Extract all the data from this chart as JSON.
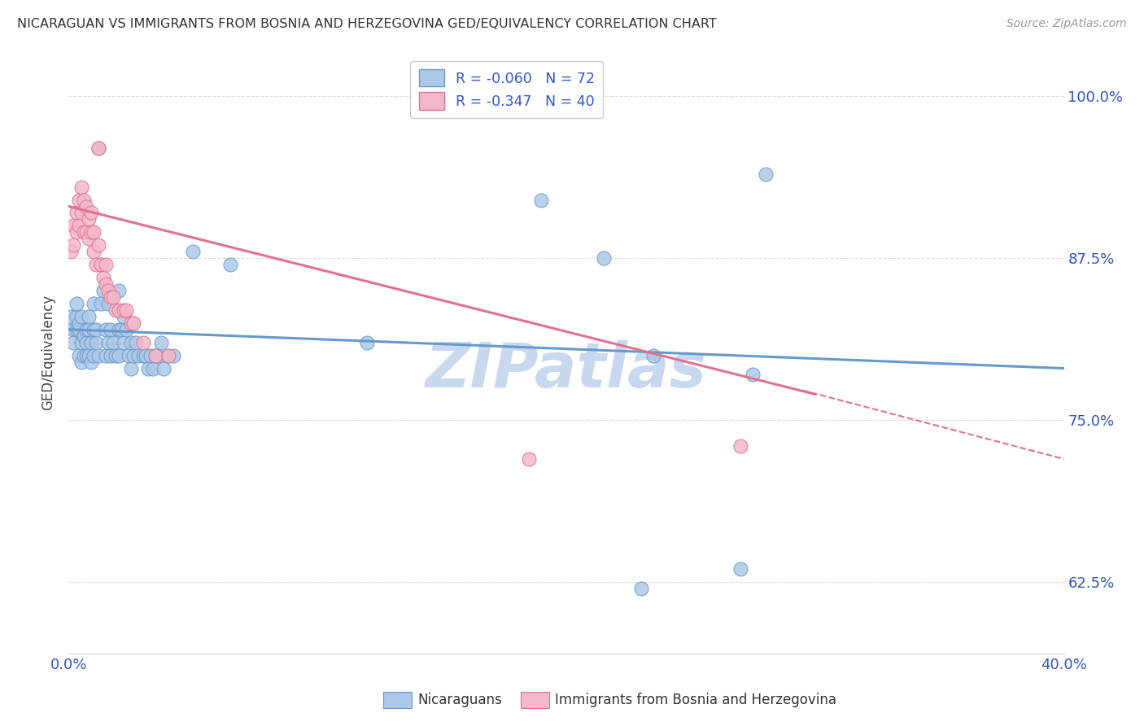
{
  "title": "NICARAGUAN VS IMMIGRANTS FROM BOSNIA AND HERZEGOVINA GED/EQUIVALENCY CORRELATION CHART",
  "source": "Source: ZipAtlas.com",
  "ylabel": "GED/Equivalency",
  "xmin": 0.0,
  "xmax": 0.4,
  "ymin": 0.57,
  "ymax": 1.035,
  "blue_color": "#6699cc",
  "pink_color": "#e07090",
  "blue_fill": "#adc8e8",
  "pink_fill": "#f4b8c8",
  "watermark": "ZIPatlas",
  "watermark_color": "#c8d8ee",
  "background_color": "#ffffff",
  "grid_color": "#dddddd",
  "blue_scatter": [
    [
      0.001,
      0.83
    ],
    [
      0.002,
      0.82
    ],
    [
      0.002,
      0.81
    ],
    [
      0.003,
      0.83
    ],
    [
      0.003,
      0.82
    ],
    [
      0.003,
      0.84
    ],
    [
      0.004,
      0.82
    ],
    [
      0.004,
      0.8
    ],
    [
      0.004,
      0.825
    ],
    [
      0.005,
      0.81
    ],
    [
      0.005,
      0.83
    ],
    [
      0.005,
      0.795
    ],
    [
      0.006,
      0.815
    ],
    [
      0.006,
      0.8
    ],
    [
      0.007,
      0.82
    ],
    [
      0.007,
      0.8
    ],
    [
      0.007,
      0.81
    ],
    [
      0.008,
      0.8
    ],
    [
      0.008,
      0.83
    ],
    [
      0.008,
      0.82
    ],
    [
      0.009,
      0.81
    ],
    [
      0.009,
      0.795
    ],
    [
      0.01,
      0.84
    ],
    [
      0.01,
      0.82
    ],
    [
      0.01,
      0.8
    ],
    [
      0.011,
      0.81
    ],
    [
      0.011,
      0.82
    ],
    [
      0.012,
      0.8
    ],
    [
      0.012,
      0.96
    ],
    [
      0.013,
      0.87
    ],
    [
      0.013,
      0.84
    ],
    [
      0.014,
      0.85
    ],
    [
      0.015,
      0.82
    ],
    [
      0.015,
      0.8
    ],
    [
      0.016,
      0.84
    ],
    [
      0.016,
      0.81
    ],
    [
      0.017,
      0.82
    ],
    [
      0.017,
      0.8
    ],
    [
      0.018,
      0.81
    ],
    [
      0.019,
      0.8
    ],
    [
      0.02,
      0.85
    ],
    [
      0.02,
      0.82
    ],
    [
      0.02,
      0.8
    ],
    [
      0.021,
      0.82
    ],
    [
      0.022,
      0.83
    ],
    [
      0.022,
      0.81
    ],
    [
      0.023,
      0.82
    ],
    [
      0.024,
      0.8
    ],
    [
      0.025,
      0.81
    ],
    [
      0.025,
      0.79
    ],
    [
      0.026,
      0.8
    ],
    [
      0.027,
      0.81
    ],
    [
      0.028,
      0.8
    ],
    [
      0.03,
      0.8
    ],
    [
      0.031,
      0.8
    ],
    [
      0.032,
      0.79
    ],
    [
      0.033,
      0.8
    ],
    [
      0.034,
      0.79
    ],
    [
      0.035,
      0.8
    ],
    [
      0.036,
      0.8
    ],
    [
      0.037,
      0.81
    ],
    [
      0.038,
      0.79
    ],
    [
      0.04,
      0.8
    ],
    [
      0.042,
      0.8
    ],
    [
      0.05,
      0.88
    ],
    [
      0.065,
      0.87
    ],
    [
      0.12,
      0.81
    ],
    [
      0.19,
      0.92
    ],
    [
      0.215,
      0.875
    ],
    [
      0.23,
      0.62
    ],
    [
      0.235,
      0.8
    ],
    [
      0.27,
      0.635
    ],
    [
      0.275,
      0.785
    ],
    [
      0.28,
      0.94
    ]
  ],
  "pink_scatter": [
    [
      0.001,
      0.88
    ],
    [
      0.002,
      0.9
    ],
    [
      0.002,
      0.885
    ],
    [
      0.003,
      0.91
    ],
    [
      0.003,
      0.895
    ],
    [
      0.004,
      0.92
    ],
    [
      0.004,
      0.9
    ],
    [
      0.005,
      0.93
    ],
    [
      0.005,
      0.91
    ],
    [
      0.006,
      0.92
    ],
    [
      0.006,
      0.895
    ],
    [
      0.007,
      0.915
    ],
    [
      0.007,
      0.895
    ],
    [
      0.008,
      0.905
    ],
    [
      0.008,
      0.89
    ],
    [
      0.009,
      0.91
    ],
    [
      0.009,
      0.895
    ],
    [
      0.01,
      0.88
    ],
    [
      0.01,
      0.895
    ],
    [
      0.011,
      0.87
    ],
    [
      0.012,
      0.885
    ],
    [
      0.012,
      0.96
    ],
    [
      0.013,
      0.87
    ],
    [
      0.014,
      0.86
    ],
    [
      0.015,
      0.87
    ],
    [
      0.015,
      0.855
    ],
    [
      0.016,
      0.85
    ],
    [
      0.017,
      0.845
    ],
    [
      0.018,
      0.845
    ],
    [
      0.019,
      0.835
    ],
    [
      0.02,
      0.835
    ],
    [
      0.022,
      0.835
    ],
    [
      0.023,
      0.835
    ],
    [
      0.025,
      0.825
    ],
    [
      0.026,
      0.825
    ],
    [
      0.03,
      0.81
    ],
    [
      0.035,
      0.8
    ],
    [
      0.04,
      0.8
    ],
    [
      0.185,
      0.72
    ],
    [
      0.27,
      0.73
    ]
  ],
  "blue_line": {
    "x0": 0.0,
    "x1": 0.4,
    "y0": 0.82,
    "y1": 0.79
  },
  "pink_line_solid": {
    "x0": 0.0,
    "x1": 0.3,
    "y0": 0.915,
    "y1": 0.77
  },
  "pink_line_dashed": {
    "x0": 0.295,
    "x1": 0.4,
    "y0": 0.773,
    "y1": 0.72
  }
}
